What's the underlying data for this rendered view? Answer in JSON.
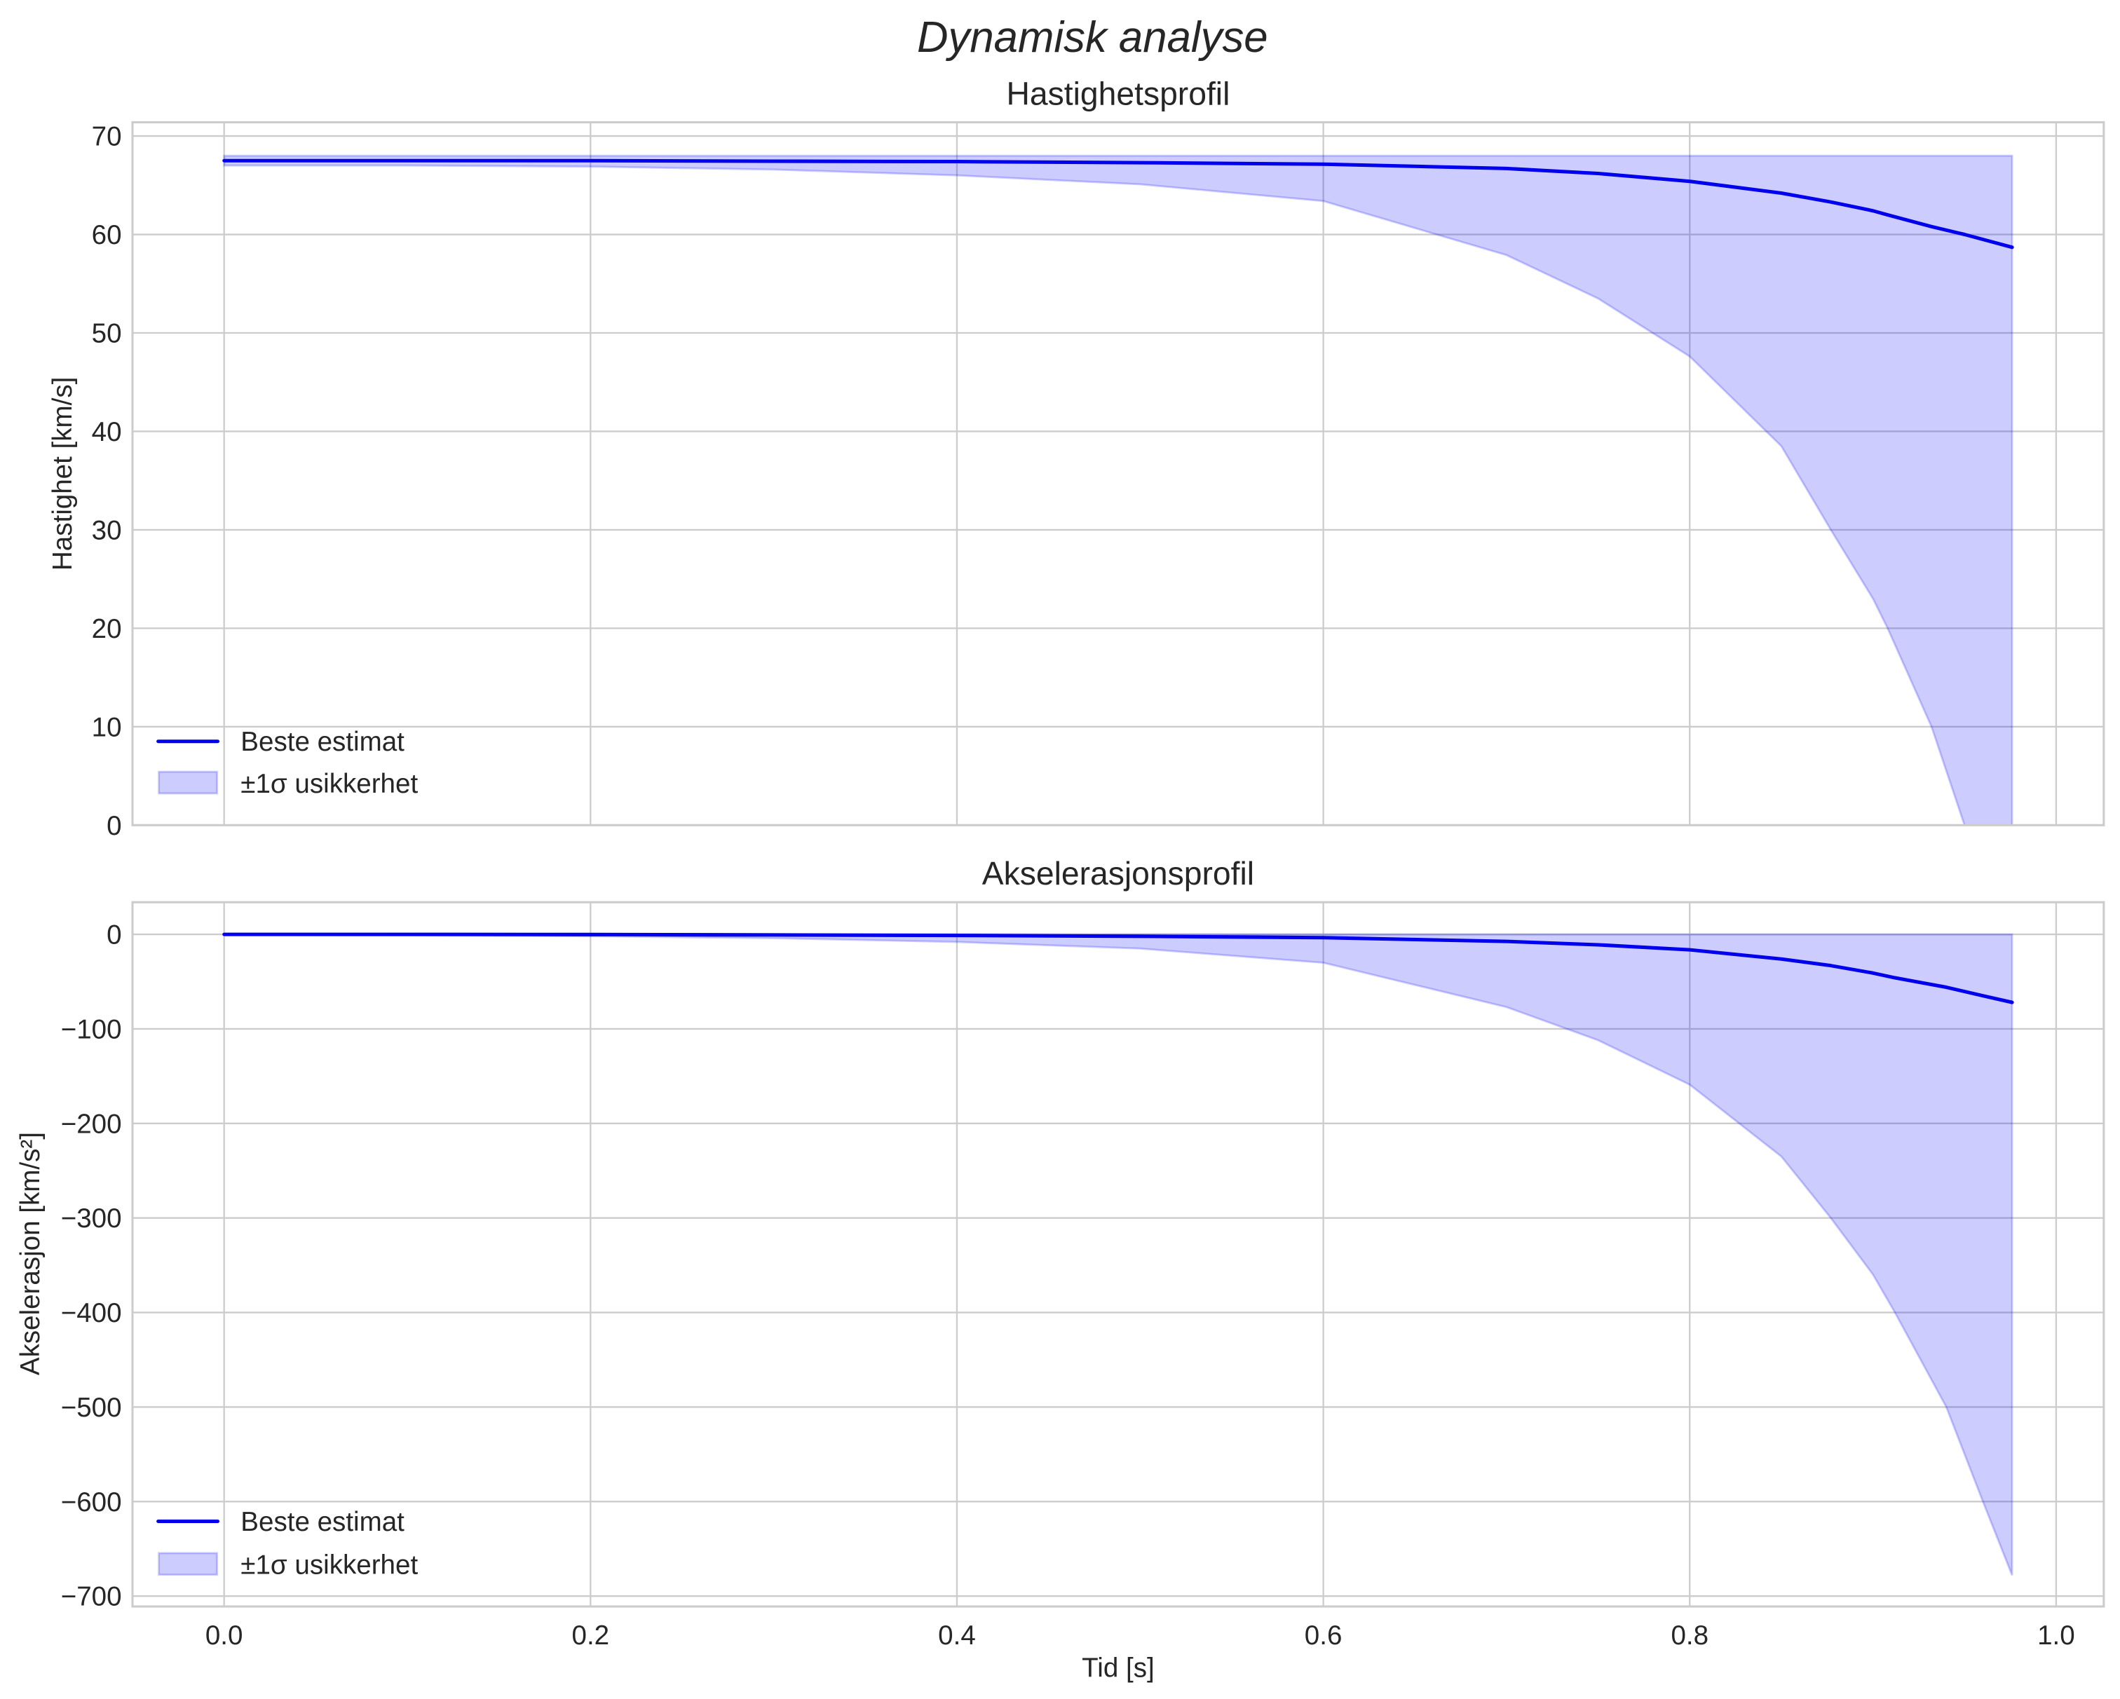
{
  "figure": {
    "suptitle": "Dynamisk analyse",
    "xlabel": "Tid [s]"
  },
  "colors": {
    "line": "#0000ee",
    "band_fill": "#0000ff",
    "band_alpha": 0.2,
    "grid": "#cccccc",
    "text": "#262626"
  },
  "legend": {
    "line_label": "Beste estimat",
    "band_label": "±1σ usikkerhet"
  },
  "chart_data": [
    {
      "type": "line",
      "title": "Hastighetsprofil",
      "xlabel": "",
      "ylabel": "Hastighet [km/s]",
      "xlim": [
        -0.05,
        1.026
      ],
      "ylim": [
        0,
        71.4
      ],
      "xticks": [
        "0.0",
        "0.2",
        "0.4",
        "0.6",
        "0.8",
        "1.0"
      ],
      "yticks": [
        0,
        10,
        20,
        30,
        40,
        50,
        60,
        70
      ],
      "ytick_labels": [
        "0",
        "10",
        "20",
        "30",
        "40",
        "50",
        "60",
        "70"
      ],
      "grid": true,
      "legend_position": "lower left",
      "x": [
        0.0,
        0.1,
        0.2,
        0.3,
        0.4,
        0.5,
        0.6,
        0.7,
        0.75,
        0.8,
        0.85,
        0.877,
        0.9,
        0.908,
        0.932,
        0.95,
        0.976
      ],
      "series": [
        {
          "name": "Beste estimat",
          "kind": "line",
          "values": [
            67.5,
            67.5,
            67.5,
            67.45,
            67.4,
            67.3,
            67.15,
            66.7,
            66.2,
            65.4,
            64.2,
            63.3,
            62.4,
            62.0,
            60.8,
            60.0,
            58.7
          ]
        },
        {
          "name": "±1σ usikkerhet (upper)",
          "kind": "band_upper",
          "values": [
            68.0,
            68.0,
            68.0,
            68.0,
            68.0,
            68.0,
            68.0,
            68.0,
            68.0,
            68.0,
            68.0,
            68.0,
            68.0,
            68.0,
            68.0,
            68.0,
            68.0
          ]
        },
        {
          "name": "±1σ usikkerhet (lower)",
          "kind": "band_lower",
          "values": [
            67.0,
            67.0,
            66.9,
            66.6,
            66.0,
            65.1,
            63.4,
            57.9,
            53.5,
            47.6,
            38.5,
            30.0,
            23.0,
            20.0,
            10.0,
            0.0,
            -12.0
          ]
        }
      ]
    },
    {
      "type": "line",
      "title": "Akselerasjonsprofil",
      "xlabel": "Tid [s]",
      "ylabel": "Akselerasjon [km/s²]",
      "xlim": [
        -0.05,
        1.026
      ],
      "ylim": [
        -711,
        34
      ],
      "xticks": [
        "0.0",
        "0.2",
        "0.4",
        "0.6",
        "0.8",
        "1.0"
      ],
      "yticks": [
        0,
        -100,
        -200,
        -300,
        -400,
        -500,
        -600,
        -700
      ],
      "ytick_labels": [
        "0",
        "−100",
        "−200",
        "−300",
        "−400",
        "−500",
        "−600",
        "−700"
      ],
      "grid": true,
      "legend_position": "lower left",
      "x": [
        0.0,
        0.1,
        0.2,
        0.3,
        0.4,
        0.5,
        0.6,
        0.7,
        0.75,
        0.8,
        0.85,
        0.877,
        0.9,
        0.912,
        0.94,
        0.96,
        0.976
      ],
      "series": [
        {
          "name": "Beste estimat",
          "kind": "line",
          "values": [
            0,
            0,
            -0.2,
            -0.6,
            -1.2,
            -2.0,
            -3.4,
            -7.5,
            -11.0,
            -16.4,
            -26.0,
            -33.0,
            -41.0,
            -46.0,
            -56.0,
            -65.0,
            -72.0
          ]
        },
        {
          "name": "±1σ usikkerhet (upper)",
          "kind": "band_upper",
          "values": [
            0,
            0,
            0,
            0,
            0,
            0,
            0,
            0,
            0,
            0,
            0,
            0,
            0,
            0,
            0,
            0,
            0
          ]
        },
        {
          "name": "±1σ usikkerhet (lower)",
          "kind": "band_lower",
          "values": [
            -0.5,
            -1.0,
            -2.0,
            -4.0,
            -8.0,
            -15.0,
            -30.0,
            -77.0,
            -112.0,
            -159.0,
            -235.0,
            -300.0,
            -360.0,
            -400.0,
            -500.0,
            -600.0,
            -678.0
          ]
        }
      ]
    }
  ]
}
